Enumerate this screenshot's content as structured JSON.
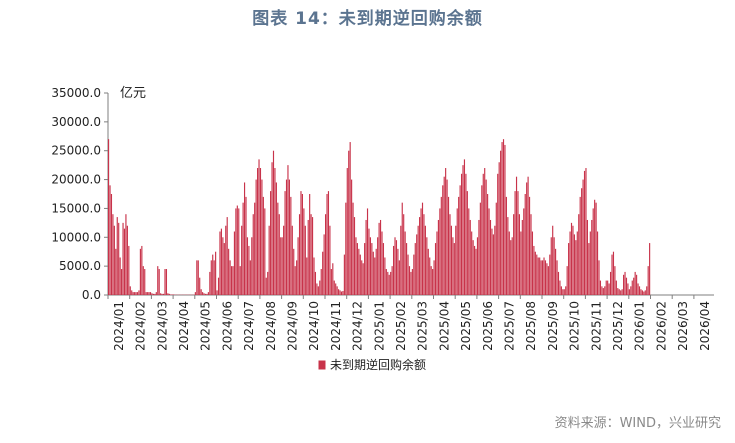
{
  "figure_title": "图表 14：未到期逆回购余额",
  "source": "资料来源：WIND，兴业研究",
  "colors": {
    "bar": "#c8334a",
    "title": "#5b7490",
    "axis": "#7f7f7f"
  },
  "chart_data": {
    "type": "bar",
    "unit": "亿元",
    "ylim": [
      0,
      35000
    ],
    "y_ticks": [
      "0.0",
      "5000.0",
      "10000.0",
      "15000.0",
      "20000.0",
      "25000.0",
      "30000.0",
      "35000.0"
    ],
    "x_labels": [
      "2024/01",
      "2024/02",
      "2024/03",
      "2024/04",
      "2024/05",
      "2024/06",
      "2024/07",
      "2024/08",
      "2024/09",
      "2024/10",
      "2024/11",
      "2024/12",
      "2025/01",
      "2025/02",
      "2025/03",
      "2025/04",
      "2025/05",
      "2025/06",
      "2025/07",
      "2025/08",
      "2025/09",
      "2025/10",
      "2025/11",
      "2025/12",
      "2026/01",
      "2026/02",
      "2026/03",
      "2026/04"
    ],
    "legend": [
      "未到期逆回购余额"
    ],
    "grid": false,
    "monthly_daily_values": [
      [
        27000,
        19000,
        17500,
        14000,
        12000,
        8000,
        13500,
        12500,
        6500,
        4500,
        12500,
        11500,
        14000,
        12000,
        8500
      ],
      [
        1500,
        800,
        500,
        500,
        500,
        500,
        800,
        8000,
        8500,
        5000,
        4500,
        500,
        500,
        500,
        500
      ],
      [
        300,
        200,
        200,
        500,
        5000,
        4500,
        300,
        200,
        200,
        4500,
        4500,
        300,
        200,
        100,
        100
      ],
      [
        100,
        50,
        50,
        50,
        50,
        50,
        50,
        50,
        50,
        50,
        50,
        50,
        50,
        50,
        50
      ],
      [
        500,
        6000,
        6000,
        3000,
        1000,
        500,
        300,
        200,
        200,
        500,
        4000,
        6000,
        7000,
        6000,
        7500
      ],
      [
        800,
        3000,
        11000,
        11500,
        10000,
        9000,
        12000,
        13500,
        8000,
        6000,
        5000,
        5000,
        11000,
        15000,
        15500
      ],
      [
        15000,
        5000,
        12000,
        16000,
        19500,
        17000,
        10000,
        8500,
        6000,
        10000,
        14000,
        16000,
        20000,
        22000,
        23500
      ],
      [
        22000,
        20000,
        17000,
        15000,
        3000,
        4000,
        12000,
        18000,
        23000,
        25000,
        22000,
        19500,
        16000,
        14000,
        10000
      ],
      [
        10000,
        12000,
        18000,
        20000,
        22500,
        20000,
        17000,
        12000,
        8000,
        5000,
        6000,
        10000,
        14000,
        18000,
        17500
      ],
      [
        15000,
        12000,
        6500,
        13000,
        17500,
        14000,
        13500,
        6500,
        4000,
        2000,
        1500,
        2500,
        4500,
        7500,
        10500
      ],
      [
        14000,
        17500,
        18000,
        12000,
        4500,
        5500,
        2500,
        2000,
        1500,
        1000,
        800,
        600,
        700,
        7000,
        16000
      ],
      [
        22000,
        25000,
        26500,
        20000,
        16000,
        13500,
        10000,
        9000,
        8000,
        7000,
        6000,
        5500,
        9000,
        13000,
        15000
      ],
      [
        11500,
        10000,
        9000,
        7500,
        6500,
        8000,
        10000,
        12500,
        13000,
        11000,
        9000,
        6500,
        4500,
        4000,
        3500
      ],
      [
        4000,
        5000,
        8500,
        10000,
        9500,
        8000,
        6000,
        12000,
        16000,
        14000,
        11000,
        9000,
        7000,
        5000,
        4000
      ],
      [
        4500,
        7000,
        9000,
        10500,
        12000,
        13500,
        15000,
        16000,
        14000,
        12000,
        10000,
        8000,
        6500,
        5000,
        4500
      ],
      [
        6000,
        9000,
        11000,
        13000,
        15000,
        17000,
        19000,
        20500,
        22000,
        20000,
        17000,
        14000,
        12000,
        10000,
        9000
      ],
      [
        12000,
        15000,
        17000,
        19000,
        21000,
        22500,
        23500,
        21000,
        18000,
        15000,
        13000,
        11000,
        9500,
        8500,
        8000
      ],
      [
        10000,
        13000,
        16000,
        19000,
        21000,
        22000,
        20000,
        17500,
        15000,
        13000,
        11500,
        10500,
        12000,
        16000,
        21000
      ],
      [
        23000,
        25000,
        26500,
        27000,
        26000,
        17000,
        13500,
        11000,
        9500,
        10000,
        14000,
        18000,
        20500,
        18000,
        14000
      ],
      [
        11000,
        13000,
        15000,
        17500,
        19500,
        20500,
        17000,
        14000,
        11000,
        8500,
        7500,
        7000,
        6500,
        6500,
        6000
      ],
      [
        6000,
        6500,
        6000,
        5500,
        5000,
        7000,
        10000,
        12000,
        10000,
        8000,
        6000,
        4000,
        2500,
        1500,
        1000
      ],
      [
        1000,
        1500,
        5000,
        9000,
        11000,
        12500,
        12000,
        10500,
        9500,
        11000,
        14000,
        17000,
        18500,
        20000,
        21500
      ],
      [
        22000,
        13000,
        9000,
        11000,
        13000,
        15000,
        16500,
        16000,
        11000,
        6000,
        2500,
        1500,
        1200,
        1500,
        2500
      ],
      [
        2500,
        2000,
        4000,
        7000,
        7500,
        5000,
        2500,
        1200,
        1000,
        800,
        1000,
        3500,
        4000,
        3000,
        2000
      ],
      [
        1000,
        1500,
        2500,
        3000,
        4000,
        3500,
        2000,
        1500,
        1000,
        800,
        600,
        800,
        1500,
        5000,
        9000
      ]
    ]
  }
}
